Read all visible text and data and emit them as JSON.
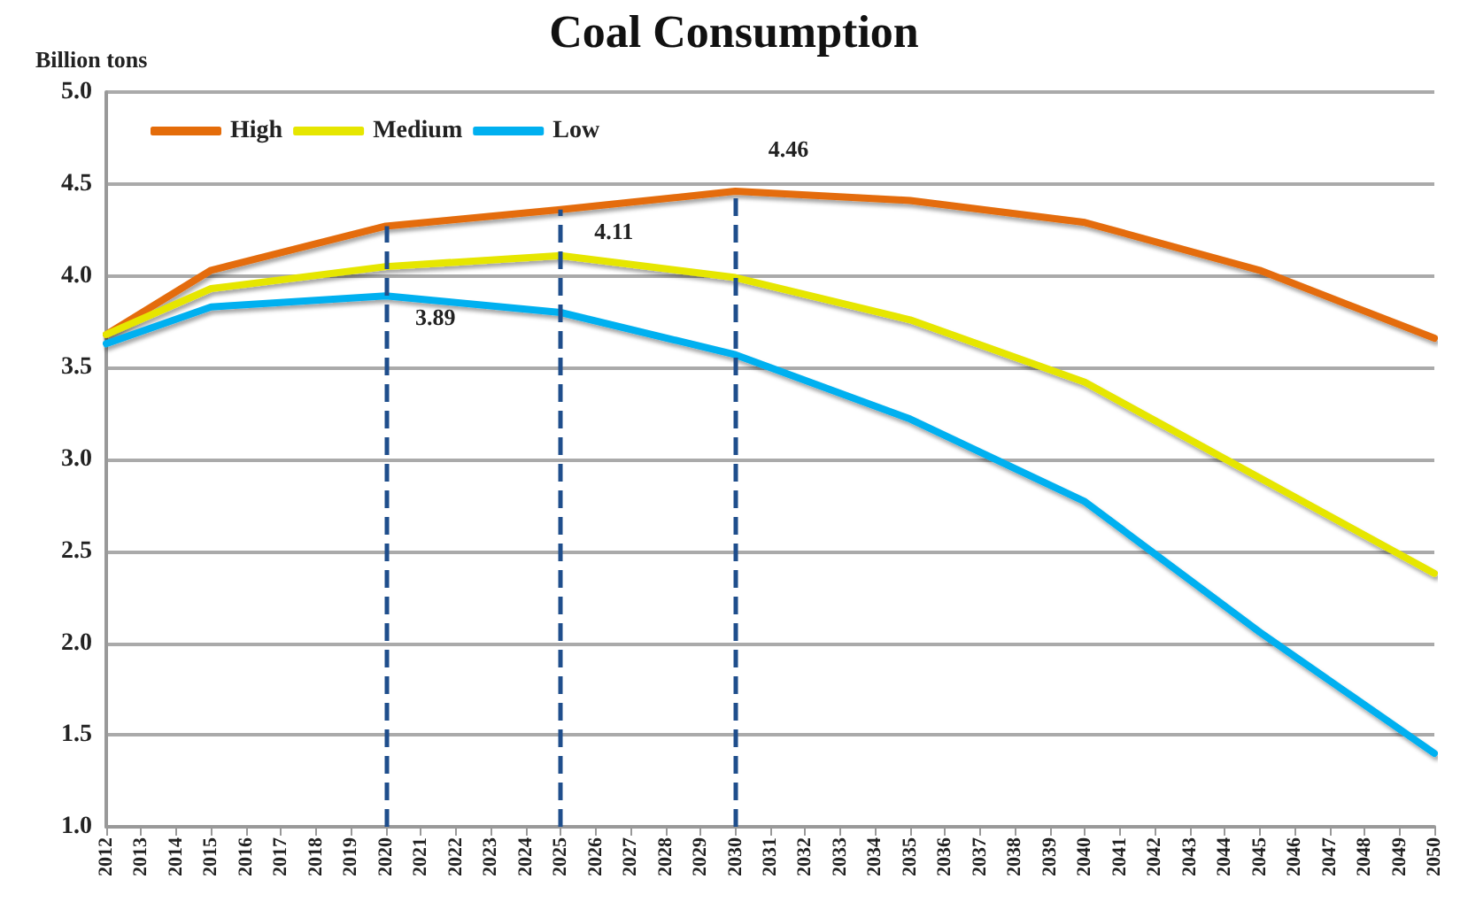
{
  "chart_data": {
    "type": "line",
    "title": "Coal Consumption",
    "ylabel": "Billion tons",
    "categories": [
      "2012",
      "2013",
      "2014",
      "2015",
      "2016",
      "2017",
      "2018",
      "2019",
      "2020",
      "2021",
      "2022",
      "2023",
      "2024",
      "2025",
      "2026",
      "2027",
      "2028",
      "2029",
      "2030",
      "2031",
      "2032",
      "2033",
      "2034",
      "2035",
      "2036",
      "2037",
      "2038",
      "2039",
      "2040",
      "2041",
      "2042",
      "2043",
      "2044",
      "2045",
      "2046",
      "2047",
      "2048",
      "2049",
      "2050"
    ],
    "series": [
      {
        "name": "High",
        "color": "#e46c0a",
        "values": [
          3.68,
          null,
          null,
          4.03,
          null,
          null,
          null,
          null,
          4.27,
          null,
          null,
          null,
          null,
          4.36,
          null,
          null,
          null,
          null,
          4.46,
          null,
          null,
          null,
          null,
          4.41,
          null,
          null,
          null,
          null,
          4.29,
          null,
          null,
          null,
          null,
          4.03,
          null,
          null,
          null,
          null,
          3.66
        ]
      },
      {
        "name": "Medium",
        "color": "#e6e600",
        "values": [
          3.68,
          null,
          null,
          3.93,
          null,
          null,
          null,
          null,
          4.05,
          null,
          null,
          null,
          null,
          4.11,
          null,
          null,
          null,
          null,
          3.99,
          null,
          null,
          null,
          null,
          3.76,
          null,
          null,
          null,
          null,
          3.42,
          null,
          null,
          null,
          null,
          2.9,
          null,
          null,
          null,
          null,
          2.38
        ]
      },
      {
        "name": "Low",
        "color": "#00b0f0",
        "values": [
          3.63,
          null,
          null,
          3.83,
          null,
          null,
          null,
          null,
          3.89,
          null,
          null,
          null,
          null,
          3.8,
          null,
          null,
          null,
          null,
          3.57,
          null,
          null,
          null,
          null,
          3.22,
          null,
          null,
          null,
          null,
          2.77,
          null,
          null,
          null,
          null,
          2.06,
          null,
          null,
          null,
          null,
          1.4
        ]
      }
    ],
    "ylim": [
      1.0,
      5.0
    ],
    "yticks": [
      {
        "value": 1,
        "label": "1.0"
      },
      {
        "value": 1.5,
        "label": "1.5"
      },
      {
        "value": 2,
        "label": "2.0"
      },
      {
        "value": 2.5,
        "label": "2.5"
      },
      {
        "value": 3,
        "label": "3.0"
      },
      {
        "value": 3.5,
        "label": "3.5"
      },
      {
        "value": 4,
        "label": "4.0"
      },
      {
        "value": 4.5,
        "label": "4.5"
      },
      {
        "value": 5,
        "label": "5.0"
      }
    ],
    "grid": "y",
    "legend": "top left",
    "marker": "none",
    "line_style": "solid",
    "ref_lines": [
      {
        "axis": "x",
        "value": "2020",
        "color": "#1f4e8c",
        "line_style": "dashed"
      },
      {
        "axis": "x",
        "value": "2025",
        "color": "#1f4e8c",
        "line_style": "dashed"
      },
      {
        "axis": "x",
        "value": "2030",
        "color": "#1f4e8c",
        "line_style": "dashed"
      }
    ],
    "annotations": [
      {
        "text": "3.89",
        "x": "2020",
        "y": 3.89
      },
      {
        "text": "4.11",
        "x": "2025",
        "y": 4.11
      },
      {
        "text": "4.46",
        "x": "2030",
        "y": 4.46
      }
    ]
  }
}
